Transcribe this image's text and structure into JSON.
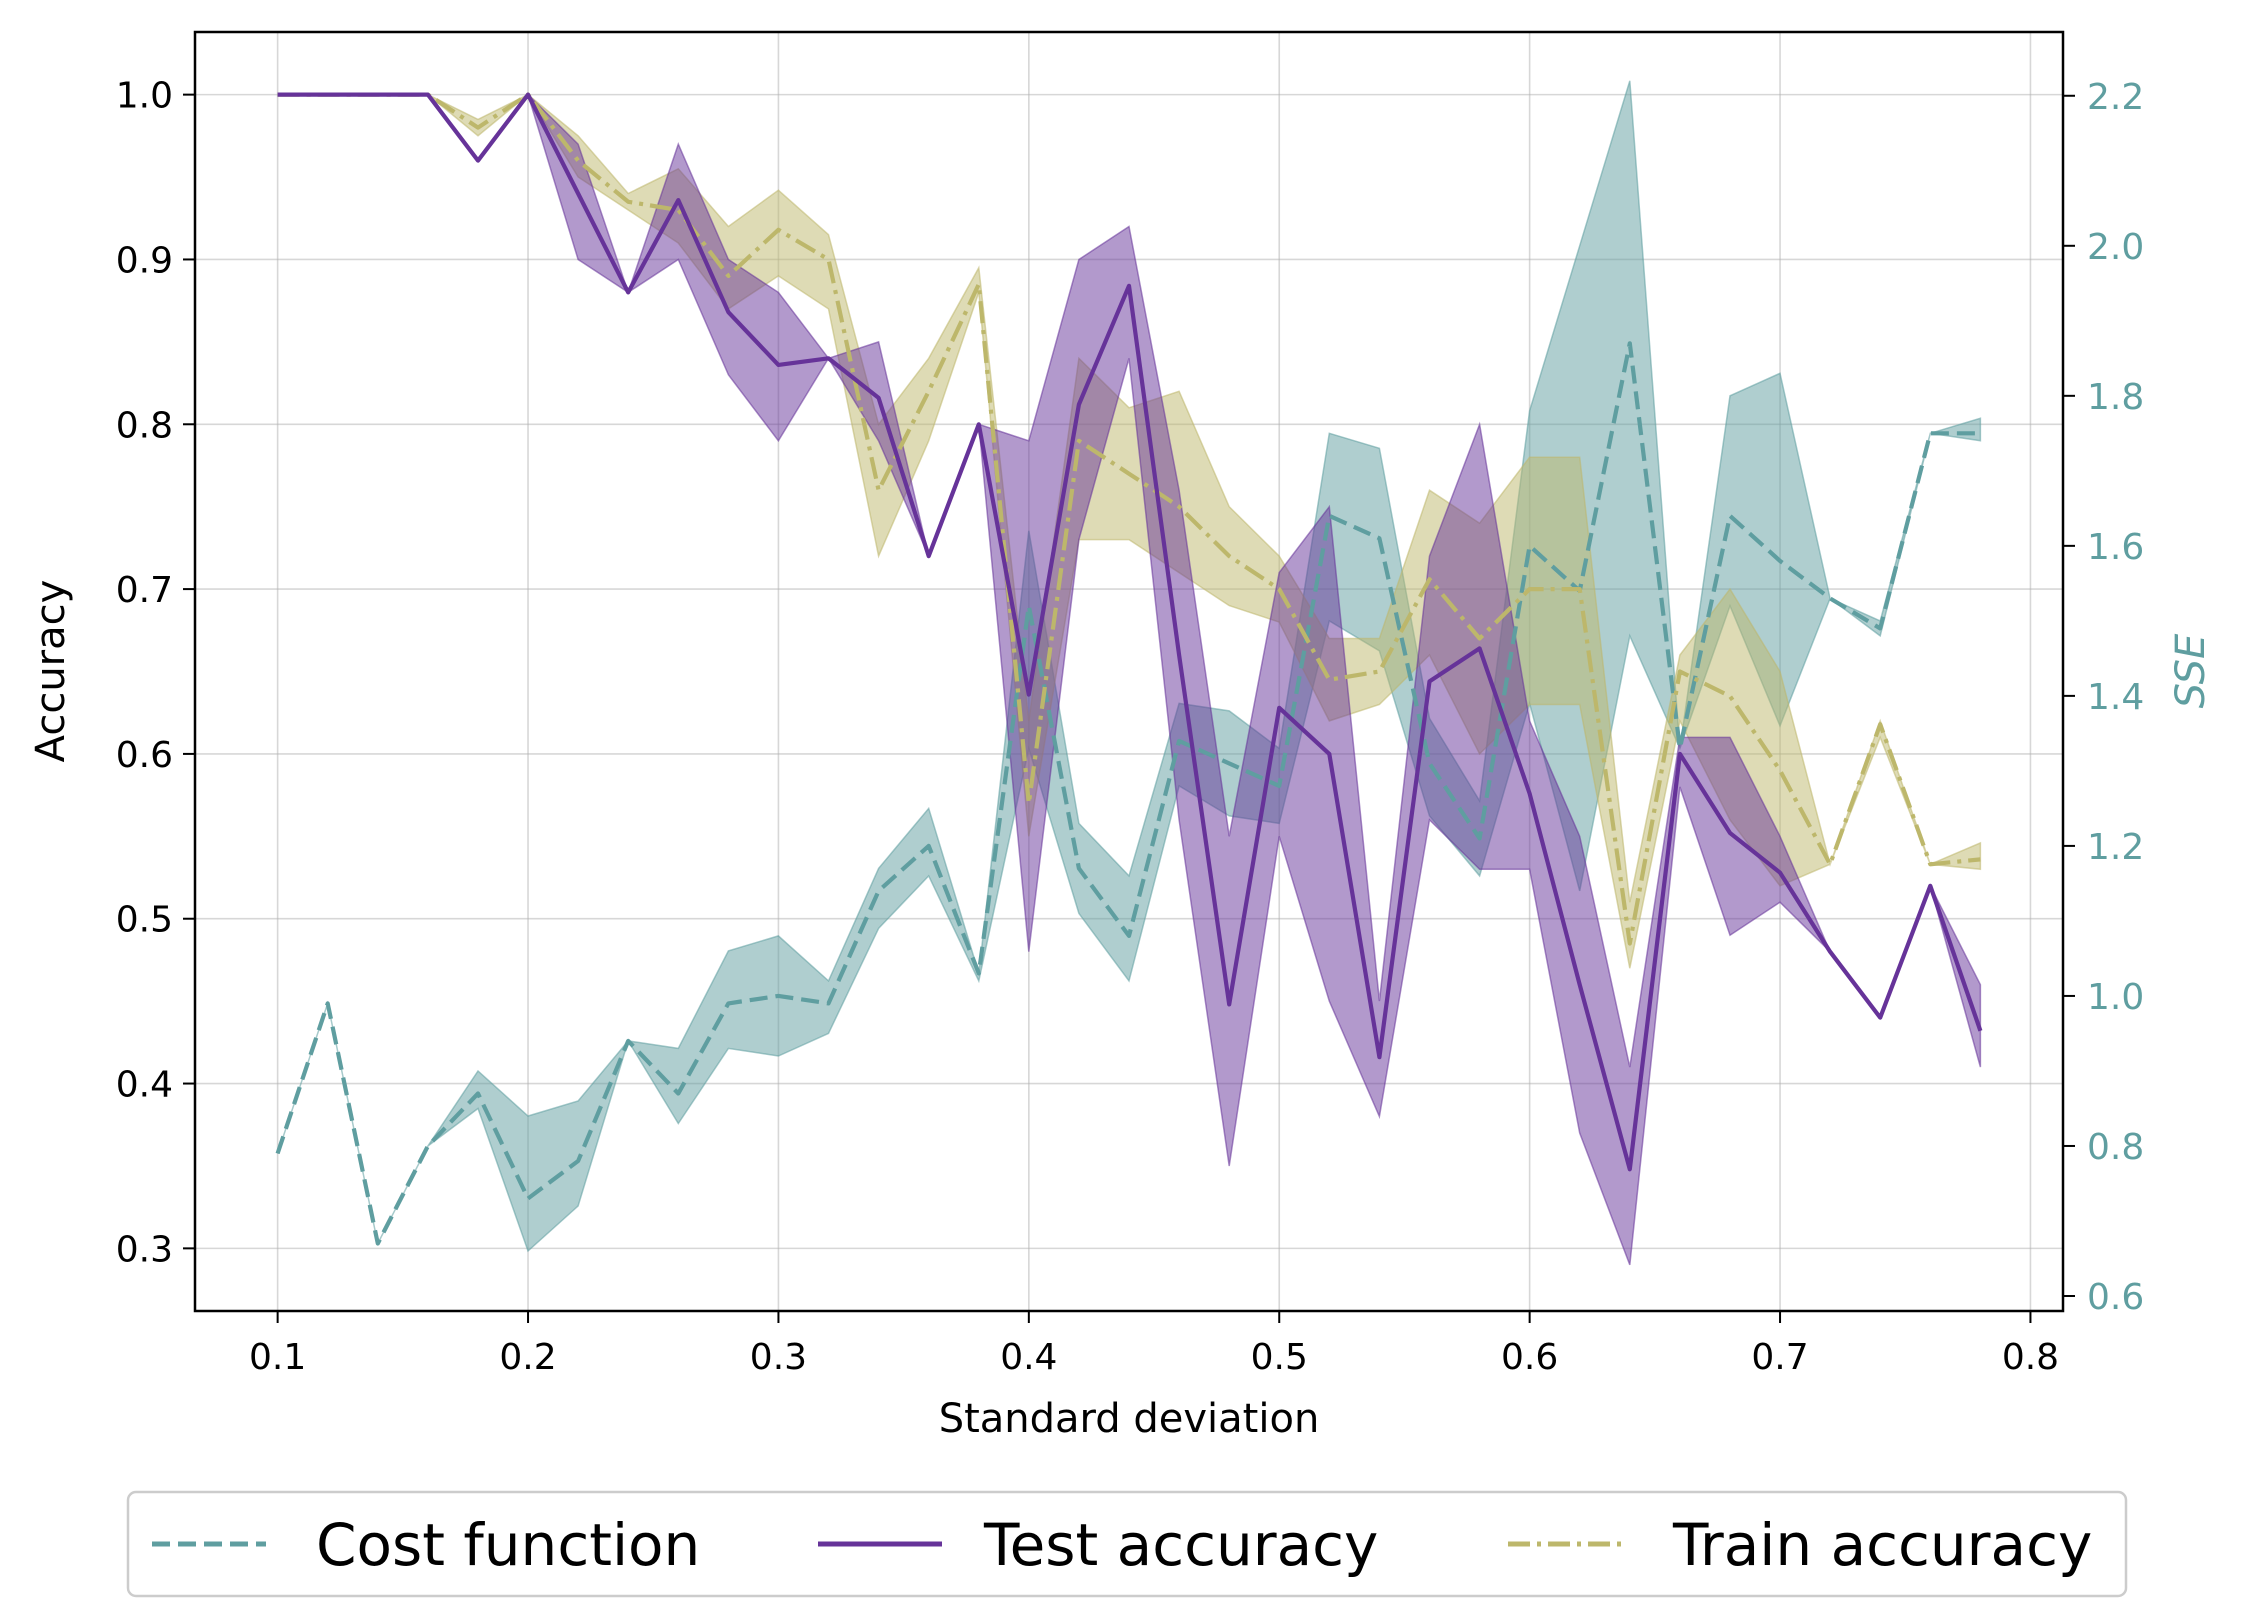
{
  "chart_data": {
    "type": "line",
    "xlabel": "Standard deviation",
    "ylabel": "Accuracy",
    "y2label": "SSE",
    "xlim": [
      0.067,
      0.813
    ],
    "ylim": [
      0.262,
      1.038
    ],
    "y2lim": [
      0.58,
      2.285
    ],
    "xticks": [
      "0.1",
      "0.2",
      "0.3",
      "0.4",
      "0.5",
      "0.6",
      "0.7",
      "0.8"
    ],
    "yticks": [
      "0.3",
      "0.4",
      "0.5",
      "0.6",
      "0.7",
      "0.8",
      "0.9",
      "1.0"
    ],
    "y2ticks": [
      "0.6",
      "0.8",
      "1.0",
      "1.2",
      "1.4",
      "1.6",
      "1.8",
      "2.0",
      "2.2"
    ],
    "grid": true,
    "legend": {
      "position": "bottom"
    },
    "colors": {
      "cost": "#5f9ea0",
      "test": "#663399",
      "train": "#bdb76b"
    },
    "x": [
      0.1,
      0.12,
      0.14,
      0.16,
      0.18,
      0.2,
      0.22,
      0.24,
      0.26,
      0.28,
      0.3,
      0.32,
      0.34,
      0.36,
      0.38,
      0.4,
      0.42,
      0.44,
      0.46,
      0.48,
      0.5,
      0.52,
      0.54,
      0.56,
      0.58,
      0.6,
      0.62,
      0.64,
      0.66,
      0.68,
      0.7,
      0.72,
      0.74,
      0.76,
      0.78
    ],
    "series": [
      {
        "name": "Cost function",
        "axis": "right",
        "style": "dashed",
        "values": [
          0.79,
          0.99,
          0.67,
          0.8,
          0.87,
          0.73,
          0.78,
          0.94,
          0.87,
          0.99,
          1.0,
          0.99,
          1.14,
          1.2,
          1.03,
          1.52,
          1.17,
          1.08,
          1.34,
          1.31,
          1.28,
          1.64,
          1.61,
          1.31,
          1.21,
          1.6,
          1.54,
          1.87,
          1.33,
          1.64,
          1.58,
          1.53,
          1.49,
          1.75,
          1.75
        ],
        "lower": [
          0.79,
          0.99,
          0.67,
          0.8,
          0.85,
          0.66,
          0.72,
          0.94,
          0.83,
          0.93,
          0.92,
          0.95,
          1.09,
          1.16,
          1.02,
          1.33,
          1.11,
          1.02,
          1.28,
          1.24,
          1.23,
          1.5,
          1.46,
          1.24,
          1.16,
          1.39,
          1.14,
          1.48,
          1.33,
          1.52,
          1.36,
          1.53,
          1.48,
          1.75,
          1.74
        ],
        "upper": [
          0.79,
          0.99,
          0.67,
          0.8,
          0.9,
          0.84,
          0.86,
          0.94,
          0.93,
          1.06,
          1.08,
          1.02,
          1.17,
          1.25,
          1.03,
          1.62,
          1.23,
          1.16,
          1.39,
          1.38,
          1.33,
          1.75,
          1.73,
          1.37,
          1.26,
          1.78,
          2.0,
          2.22,
          1.33,
          1.8,
          1.83,
          1.53,
          1.5,
          1.75,
          1.77
        ]
      },
      {
        "name": "Test accuracy",
        "axis": "left",
        "style": "solid",
        "values": [
          1.0,
          1.0,
          1.0,
          1.0,
          0.96,
          1.0,
          0.94,
          0.88,
          0.936,
          0.868,
          0.836,
          0.84,
          0.816,
          0.72,
          0.8,
          0.636,
          0.812,
          0.884,
          0.66,
          0.448,
          0.628,
          0.6,
          0.416,
          0.644,
          0.664,
          0.576,
          0.46,
          0.348,
          0.6,
          0.552,
          0.528,
          0.48,
          0.44,
          0.52,
          0.432
        ],
        "lower": [
          1.0,
          1.0,
          1.0,
          1.0,
          0.96,
          1.0,
          0.9,
          0.88,
          0.9,
          0.83,
          0.79,
          0.84,
          0.79,
          0.72,
          0.8,
          0.48,
          0.73,
          0.84,
          0.56,
          0.35,
          0.55,
          0.45,
          0.38,
          0.56,
          0.53,
          0.53,
          0.37,
          0.29,
          0.58,
          0.49,
          0.51,
          0.48,
          0.44,
          0.52,
          0.41
        ],
        "upper": [
          1.0,
          1.0,
          1.0,
          1.0,
          0.96,
          1.0,
          0.97,
          0.88,
          0.97,
          0.9,
          0.88,
          0.84,
          0.85,
          0.72,
          0.8,
          0.79,
          0.9,
          0.92,
          0.76,
          0.55,
          0.71,
          0.75,
          0.45,
          0.72,
          0.8,
          0.62,
          0.55,
          0.41,
          0.61,
          0.61,
          0.55,
          0.48,
          0.44,
          0.52,
          0.46
        ]
      },
      {
        "name": "Train accuracy",
        "axis": "left",
        "style": "dashdot",
        "values": [
          1.0,
          1.0,
          1.0,
          1.0,
          0.98,
          1.0,
          0.96,
          0.935,
          0.93,
          0.89,
          0.918,
          0.9,
          0.76,
          0.82,
          0.885,
          0.57,
          0.79,
          0.77,
          0.75,
          0.72,
          0.7,
          0.645,
          0.65,
          0.706,
          0.67,
          0.7,
          0.7,
          0.485,
          0.65,
          0.635,
          0.59,
          0.533,
          0.618,
          0.533,
          0.536
        ],
        "lower": [
          1.0,
          1.0,
          1.0,
          1.0,
          0.975,
          1.0,
          0.95,
          0.93,
          0.91,
          0.87,
          0.89,
          0.87,
          0.72,
          0.79,
          0.88,
          0.55,
          0.73,
          0.73,
          0.71,
          0.69,
          0.68,
          0.62,
          0.63,
          0.66,
          0.6,
          0.63,
          0.63,
          0.47,
          0.62,
          0.56,
          0.52,
          0.533,
          0.61,
          0.533,
          0.53
        ],
        "upper": [
          1.0,
          1.0,
          1.0,
          1.0,
          0.985,
          1.0,
          0.975,
          0.94,
          0.955,
          0.92,
          0.942,
          0.915,
          0.8,
          0.84,
          0.895,
          0.62,
          0.84,
          0.81,
          0.82,
          0.75,
          0.72,
          0.67,
          0.67,
          0.76,
          0.74,
          0.78,
          0.78,
          0.51,
          0.66,
          0.7,
          0.65,
          0.533,
          0.62,
          0.533,
          0.546
        ]
      }
    ]
  }
}
